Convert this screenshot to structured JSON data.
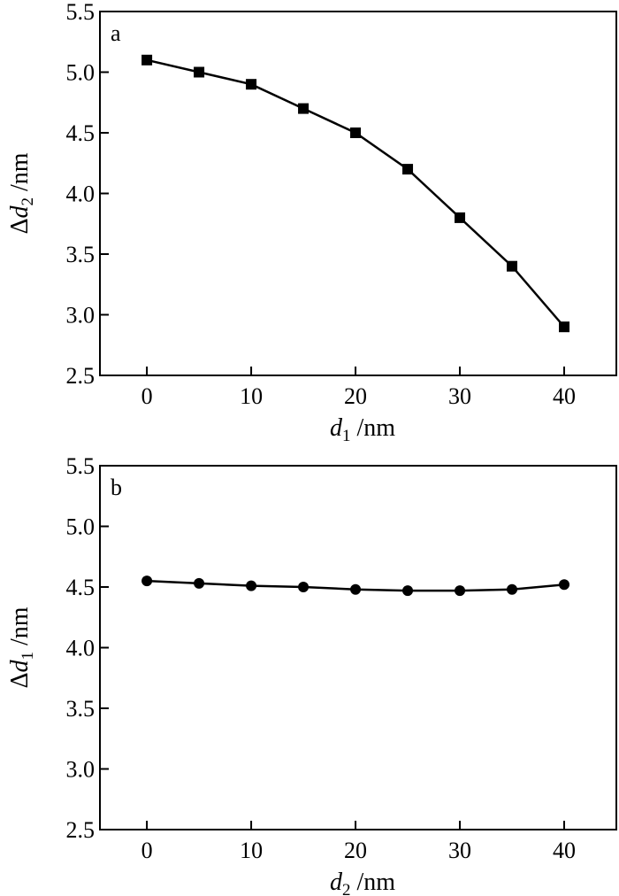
{
  "chart_data": [
    {
      "type": "line",
      "panel_label": "a",
      "marker": "square",
      "xlabel": {
        "italic": "d",
        "sub": "1",
        "unit": " /nm"
      },
      "ylabel": {
        "prefix": "Δ",
        "italic": "d",
        "sub": "2",
        "unit": " /nm"
      },
      "xlim": [
        -4.5,
        45
      ],
      "ylim": [
        2.5,
        5.5
      ],
      "xticks": [
        0,
        10,
        20,
        30,
        40
      ],
      "yticks": [
        2.5,
        3.0,
        3.5,
        4.0,
        4.5,
        5.0,
        5.5
      ],
      "xtick_labels": [
        "0",
        "10",
        "20",
        "30",
        "40"
      ],
      "ytick_labels": [
        "2.5",
        "3.0",
        "3.5",
        "4.0",
        "4.5",
        "5.0",
        "5.5"
      ],
      "x": [
        0,
        5,
        10,
        15,
        20,
        25,
        30,
        35,
        40
      ],
      "y": [
        5.1,
        5.0,
        4.9,
        4.7,
        4.5,
        4.2,
        3.8,
        3.4,
        2.9
      ],
      "grid": false
    },
    {
      "type": "line",
      "panel_label": "b",
      "marker": "circle",
      "xlabel": {
        "italic": "d",
        "sub": "2",
        "unit": " /nm"
      },
      "ylabel": {
        "prefix": "Δ",
        "italic": "d",
        "sub": "1",
        "unit": " /nm"
      },
      "xlim": [
        -4.5,
        45
      ],
      "ylim": [
        2.5,
        5.5
      ],
      "xticks": [
        0,
        10,
        20,
        30,
        40
      ],
      "yticks": [
        2.5,
        3.0,
        3.5,
        4.0,
        4.5,
        5.0,
        5.5
      ],
      "xtick_labels": [
        "0",
        "10",
        "20",
        "30",
        "40"
      ],
      "ytick_labels": [
        "2.5",
        "3.0",
        "3.5",
        "4.0",
        "4.5",
        "5.0",
        "5.5"
      ],
      "x": [
        0,
        5,
        10,
        15,
        20,
        25,
        30,
        35,
        40
      ],
      "y": [
        4.55,
        4.53,
        4.51,
        4.5,
        4.48,
        4.47,
        4.47,
        4.48,
        4.52
      ],
      "grid": false
    }
  ]
}
